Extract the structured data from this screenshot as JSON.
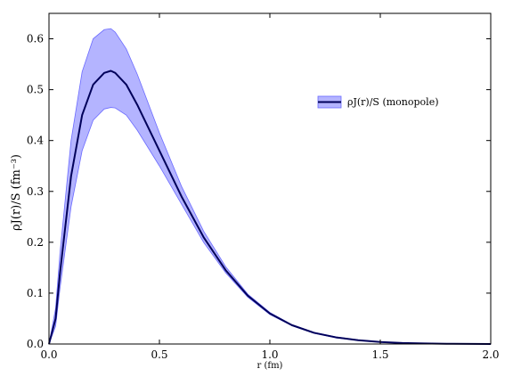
{
  "chart_data": {
    "type": "line",
    "xlabel": "r (fm)",
    "ylabel": "ρJ(r)/S (fm⁻³)",
    "xlim": [
      0.0,
      2.0
    ],
    "ylim": [
      0.0,
      0.65
    ],
    "xticks": [
      "0.0",
      "0.5",
      "1.0",
      "1.5",
      "2.0"
    ],
    "xtick_values": [
      0.0,
      0.5,
      1.0,
      1.5,
      2.0
    ],
    "yticks": [
      "0.0",
      "0.1",
      "0.2",
      "0.3",
      "0.4",
      "0.5",
      "0.6"
    ],
    "ytick_values": [
      0.0,
      0.1,
      0.2,
      0.3,
      0.4,
      0.5,
      0.6
    ],
    "grid": false,
    "legend_position": "upper-right",
    "series": [
      {
        "name": "ρJ(r)/S (monopole)",
        "line_color": "#00005a",
        "band_color": "#9b9bff",
        "x": [
          0.0,
          0.03,
          0.05,
          0.1,
          0.15,
          0.2,
          0.25,
          0.28,
          0.3,
          0.35,
          0.4,
          0.5,
          0.6,
          0.7,
          0.8,
          0.9,
          1.0,
          1.1,
          1.2,
          1.3,
          1.4,
          1.5,
          1.6,
          1.7,
          1.8,
          2.0
        ],
        "values": [
          0.0,
          0.05,
          0.14,
          0.33,
          0.45,
          0.51,
          0.533,
          0.537,
          0.533,
          0.51,
          0.47,
          0.38,
          0.29,
          0.21,
          0.145,
          0.095,
          0.06,
          0.037,
          0.022,
          0.013,
          0.0075,
          0.004,
          0.002,
          0.001,
          0.0005,
          0.0
        ],
        "lower": [
          0.0,
          0.035,
          0.11,
          0.27,
          0.38,
          0.44,
          0.462,
          0.465,
          0.464,
          0.45,
          0.42,
          0.35,
          0.275,
          0.2,
          0.14,
          0.092,
          0.058,
          0.036,
          0.021,
          0.012,
          0.007,
          0.0037,
          0.0018,
          0.0009,
          0.0004,
          0.0
        ],
        "upper": [
          0.0,
          0.07,
          0.18,
          0.4,
          0.535,
          0.6,
          0.618,
          0.62,
          0.613,
          0.58,
          0.53,
          0.415,
          0.31,
          0.222,
          0.152,
          0.098,
          0.062,
          0.038,
          0.023,
          0.014,
          0.008,
          0.0043,
          0.0022,
          0.0011,
          0.0006,
          0.0
        ]
      }
    ]
  }
}
